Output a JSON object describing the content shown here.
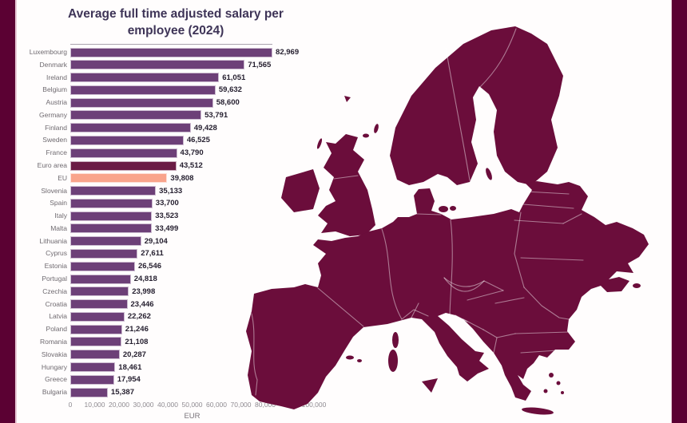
{
  "frame": {
    "pillar_color": "#5b0133",
    "pillar_edge_color": "#e9c9d6",
    "background": "#fffdfd"
  },
  "text_colors": {
    "title": "#3e3457",
    "category": "#6f6a70",
    "value": "#262030",
    "tick": "#8f8b91"
  },
  "map": {
    "name": "europe-map",
    "fill": "#6b0d3b",
    "border_color": "rgba(255,255,255,0.45)"
  },
  "chart_data": {
    "type": "bar",
    "orientation": "horizontal",
    "title": "Average full time adjusted salary per employee (2024)",
    "xlabel": "EUR",
    "xlim": [
      0,
      100000
    ],
    "grid": false,
    "legend": false,
    "x_ticks": [
      {
        "value": 0,
        "label": "0"
      },
      {
        "value": 10000,
        "label": "10,000"
      },
      {
        "value": 20000,
        "label": "20,000"
      },
      {
        "value": 30000,
        "label": "30,000"
      },
      {
        "value": 40000,
        "label": "40,000"
      },
      {
        "value": 50000,
        "label": "50,000"
      },
      {
        "value": 60000,
        "label": "60,000"
      },
      {
        "value": 70000,
        "label": "70,000"
      },
      {
        "value": 80000,
        "label": "80,000"
      },
      {
        "value": 100000,
        "label": "100,000"
      }
    ],
    "colors": {
      "bar": "#6d4078",
      "euro_area": "#6b1c45",
      "eu": "#f9a48c",
      "bar_border": "rgba(255,255,255,0.65)"
    },
    "rows": [
      {
        "category": "Luxembourg",
        "value": 82969,
        "label": "82,969",
        "kind": "default"
      },
      {
        "category": "Denmark",
        "value": 71565,
        "label": "71,565",
        "kind": "default"
      },
      {
        "category": "Ireland",
        "value": 61051,
        "label": "61,051",
        "kind": "default"
      },
      {
        "category": "Belgium",
        "value": 59632,
        "label": "59,632",
        "kind": "default"
      },
      {
        "category": "Austria",
        "value": 58600,
        "label": "58,600",
        "kind": "default"
      },
      {
        "category": "Germany",
        "value": 53791,
        "label": "53,791",
        "kind": "default"
      },
      {
        "category": "Finland",
        "value": 49428,
        "label": "49,428",
        "kind": "default"
      },
      {
        "category": "Sweden",
        "value": 46525,
        "label": "46,525",
        "kind": "default"
      },
      {
        "category": "France",
        "value": 43790,
        "label": "43,790",
        "kind": "default"
      },
      {
        "category": "Euro area",
        "value": 43512,
        "label": "43,512",
        "kind": "euro_area"
      },
      {
        "category": "EU",
        "value": 39808,
        "label": "39,808",
        "kind": "eu"
      },
      {
        "category": "Slovenia",
        "value": 35133,
        "label": "35,133",
        "kind": "default"
      },
      {
        "category": "Spain",
        "value": 33700,
        "label": "33,700",
        "kind": "default"
      },
      {
        "category": "Italy",
        "value": 33523,
        "label": "33,523",
        "kind": "default"
      },
      {
        "category": "Malta",
        "value": 33499,
        "label": "33,499",
        "kind": "default"
      },
      {
        "category": "Lithuania",
        "value": 29104,
        "label": "29,104",
        "kind": "default"
      },
      {
        "category": "Cyprus",
        "value": 27611,
        "label": "27,611",
        "kind": "default"
      },
      {
        "category": "Estonia",
        "value": 26546,
        "label": "26,546",
        "kind": "default"
      },
      {
        "category": "Portugal",
        "value": 24818,
        "label": "24,818",
        "kind": "default"
      },
      {
        "category": "Czechia",
        "value": 23998,
        "label": "23,998",
        "kind": "default"
      },
      {
        "category": "Croatia",
        "value": 23446,
        "label": "23,446",
        "kind": "default"
      },
      {
        "category": "Latvia",
        "value": 22262,
        "label": "22,262",
        "kind": "default"
      },
      {
        "category": "Poland",
        "value": 21246,
        "label": "21,246",
        "kind": "default"
      },
      {
        "category": "Romania",
        "value": 21108,
        "label": "21,108",
        "kind": "default"
      },
      {
        "category": "Slovakia",
        "value": 20287,
        "label": "20,287",
        "kind": "default"
      },
      {
        "category": "Hungary",
        "value": 18461,
        "label": "18,461",
        "kind": "default"
      },
      {
        "category": "Greece",
        "value": 17954,
        "label": "17,954",
        "kind": "default"
      },
      {
        "category": "Bulgaria",
        "value": 15387,
        "label": "15,387",
        "kind": "default"
      }
    ]
  }
}
